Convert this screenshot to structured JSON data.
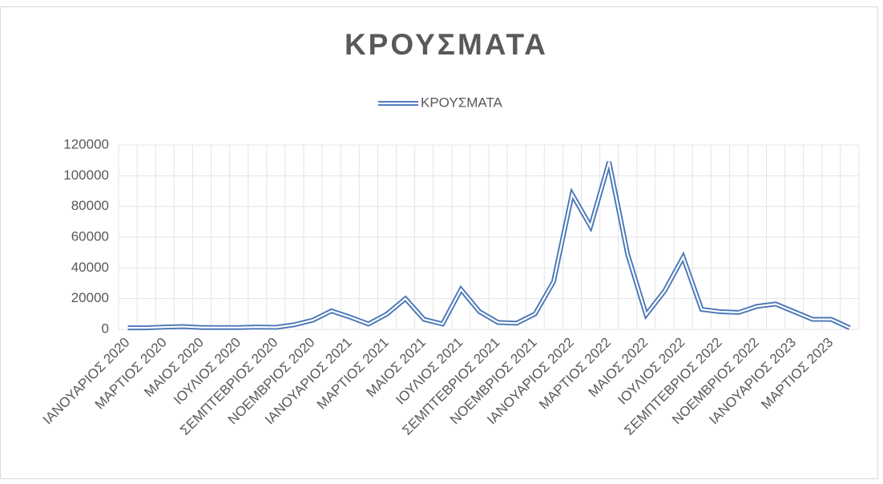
{
  "chart_data": {
    "type": "line",
    "title": "ΚΡΟΥΣΜΑΤΑ",
    "categories": [
      "ΙΑΝΟΥΑΡΙΟΣ 2020",
      null,
      "ΜΑΡΤΙΟΣ 2020",
      null,
      "ΜΑΙΟΣ 2020",
      null,
      "ΙΟΥΛΙΟΣ 2020",
      null,
      "ΣΕΜΠΤΕΒΡΙΟΣ 2020",
      null,
      "ΝΟΕΜΒΡΙΟΣ 2020",
      null,
      "ΙΑΝΟΥΑΡΙΟΣ 2021",
      null,
      "ΜΑΡΤΙΟΣ 2021",
      null,
      "ΜΑΙΟΣ 2021",
      null,
      "ΙΟΥΛΙΟΣ 2021",
      null,
      "ΣΕΜΠΤΕΒΡΙΟΣ 2021",
      null,
      "ΝΟΕΜΒΡΙΟΣ 2021",
      null,
      "ΙΑΝΟΥΑΡΙΟΣ 2022",
      null,
      "ΜΑΡΤΙΟΣ 2022",
      null,
      "ΜΑΙΟΣ 2022",
      null,
      "ΙΟΥΛΙΟΣ 2022",
      null,
      "ΣΕΜΠΤΕΒΡΙΟΣ 2022",
      null,
      "ΝΟΕΜΒΡΙΟΣ 2022",
      null,
      "ΙΑΝΟΥΑΡΙΟΣ 2023",
      null,
      "ΜΑΡΤΙΟΣ 2023",
      null
    ],
    "series": [
      {
        "name": "ΚΡΟΥΣΜΑΤΑ",
        "color": "#4a76b8",
        "values": [
          1000,
          1000,
          1500,
          1800,
          1200,
          1200,
          1200,
          1500,
          1300,
          3000,
          6000,
          12000,
          8000,
          3500,
          10000,
          20000,
          6500,
          3500,
          26000,
          11500,
          4500,
          4000,
          10000,
          31000,
          88000,
          67000,
          109000,
          49000,
          9500,
          25000,
          47000,
          13000,
          11500,
          11000,
          15000,
          16500,
          11500,
          6500,
          6500,
          1000
        ]
      }
    ],
    "ylim": [
      0,
      120000
    ],
    "yticks": [
      0,
      20000,
      40000,
      60000,
      80000,
      100000,
      120000
    ],
    "grid": true,
    "legend": "top"
  }
}
